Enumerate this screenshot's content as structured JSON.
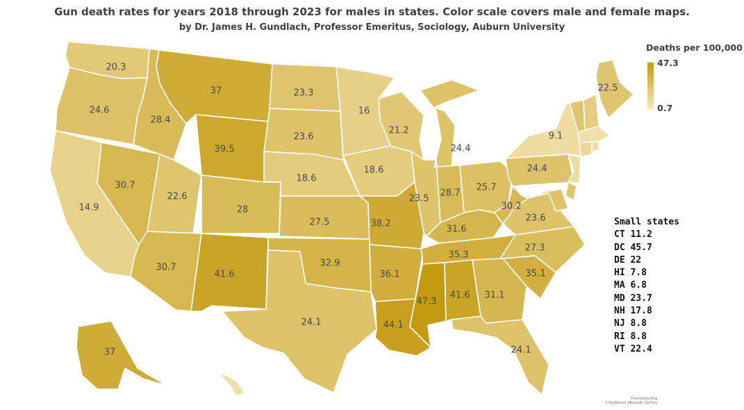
{
  "title": "Gun death rates  for years 2018 through 2023 for males in states. Color scale covers male and female maps.",
  "subtitle": "by Dr. James H. Gundlach, Professor Emeritus, Sociology, Auburn University",
  "legend": {
    "title": "Deaths per 100,000",
    "max": "47.3",
    "min": "0.7",
    "max_color": "#c49a12",
    "min_color": "#f7ebc0"
  },
  "states": [
    {
      "code": "WA",
      "value": 20.3
    },
    {
      "code": "OR",
      "value": 24.6
    },
    {
      "code": "CA",
      "value": 14.9
    },
    {
      "code": "NV",
      "value": 30.7
    },
    {
      "code": "ID",
      "value": 28.4
    },
    {
      "code": "MT",
      "value": 37
    },
    {
      "code": "WY",
      "value": 39.5
    },
    {
      "code": "UT",
      "value": 22.6
    },
    {
      "code": "CO",
      "value": 28
    },
    {
      "code": "AZ",
      "value": 30.7
    },
    {
      "code": "NM",
      "value": 41.6
    },
    {
      "code": "ND",
      "value": 23.3
    },
    {
      "code": "SD",
      "value": 23.6
    },
    {
      "code": "NE",
      "value": 18.6
    },
    {
      "code": "KS",
      "value": 27.5
    },
    {
      "code": "OK",
      "value": 32.9
    },
    {
      "code": "TX",
      "value": 24.1
    },
    {
      "code": "MN",
      "value": 16
    },
    {
      "code": "IA",
      "value": 18.6
    },
    {
      "code": "MO",
      "value": 38.2
    },
    {
      "code": "AR",
      "value": 36.1
    },
    {
      "code": "LA",
      "value": 44.1
    },
    {
      "code": "WI",
      "value": 21.2
    },
    {
      "code": "IL",
      "value": 23.5
    },
    {
      "code": "MI",
      "value": 24.4
    },
    {
      "code": "IN",
      "value": 28.7
    },
    {
      "code": "OH",
      "value": 25.7
    },
    {
      "code": "KY",
      "value": 31.6
    },
    {
      "code": "TN",
      "value": 35.3
    },
    {
      "code": "MS",
      "value": 47.3
    },
    {
      "code": "AL",
      "value": 41.6
    },
    {
      "code": "GA",
      "value": 31.1
    },
    {
      "code": "FL",
      "value": 24.1
    },
    {
      "code": "SC",
      "value": 35.1
    },
    {
      "code": "NC",
      "value": 27.3
    },
    {
      "code": "VA",
      "value": 23.6
    },
    {
      "code": "WV",
      "value": 30.2
    },
    {
      "code": "PA",
      "value": 24.4
    },
    {
      "code": "NY",
      "value": 9.1
    },
    {
      "code": "ME",
      "value": 22.5
    },
    {
      "code": "AK",
      "value": 37
    },
    {
      "code": "VT",
      "value": 22.4,
      "label": false
    },
    {
      "code": "NH",
      "value": 17.8,
      "label": false
    },
    {
      "code": "MA",
      "value": 6.8,
      "label": false
    },
    {
      "code": "CT",
      "value": 11.2,
      "label": false
    },
    {
      "code": "RI",
      "value": 8.8,
      "label": false
    },
    {
      "code": "NJ",
      "value": 8.8,
      "label": false
    },
    {
      "code": "DE",
      "value": 22,
      "label": false
    },
    {
      "code": "MD",
      "value": 23.7,
      "label": false
    },
    {
      "code": "HI",
      "value": 7.8,
      "label": false
    }
  ],
  "small_states_title": "Small states",
  "small_states": [
    "CT 11.2",
    "DC 45.7",
    "DE 22",
    "HI 7.8",
    "MA 6.8",
    "MD 23.7",
    "NH 17.8",
    "NJ 8.8",
    "RI 8.8",
    "VT 22.4"
  ],
  "credit": [
    "Powered by Bing",
    "© GeoNames, Microsoft, TomTom"
  ]
}
